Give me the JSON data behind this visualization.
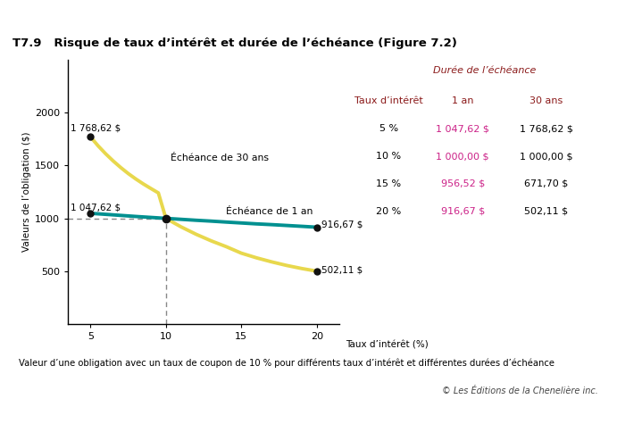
{
  "title": "T7.9   Risque de taux d’intérêt et durée de l’échéance (Figure 7.2)",
  "ylabel": "Valeurs de l’obligation ($)",
  "xlabel": "Taux d’intérêt (%)",
  "footnote": "Valeur d’une obligation avec un taux de coupon de 10 % pour différents taux d’intérêt et différentes durées d’échéance",
  "copyright": "© Les Éditions de la Chenelière inc.",
  "top_bar_color": "#D4C400",
  "purple_bar_color": "#350060",
  "background_color": "#FFFFFF",
  "curve30_x": [
    5,
    5.5,
    6,
    6.5,
    7,
    7.5,
    8,
    8.5,
    9,
    9.5,
    10,
    10.5,
    11,
    12,
    13,
    14,
    15,
    16,
    17,
    18,
    19,
    20
  ],
  "curve30_y": [
    1768.62,
    1685,
    1610,
    1542,
    1480,
    1423,
    1372,
    1325,
    1282,
    1240,
    1000.0,
    960,
    920,
    850,
    788,
    733,
    671.7,
    628,
    590,
    556,
    527,
    502.11
  ],
  "curve1_x": [
    5,
    6,
    7,
    8,
    9,
    10,
    11,
    12,
    13,
    14,
    15,
    16,
    17,
    18,
    19,
    20
  ],
  "curve1_y": [
    1047.62,
    1038.0,
    1028.0,
    1018.0,
    1009.0,
    1000.0,
    991.0,
    982.0,
    974.0,
    965.0,
    956.52,
    948.0,
    941.0,
    933.0,
    925.0,
    916.67
  ],
  "curve30_color": "#E8D84D",
  "curve1_color": "#009090",
  "dot_color": "#111111",
  "xlim": [
    3.5,
    21.5
  ],
  "ylim": [
    0,
    2500
  ],
  "yticks": [
    500,
    1000,
    1500,
    2000
  ],
  "xticks": [
    5,
    10,
    15,
    20
  ],
  "table_header": "Durée de l’échéance",
  "table_col1": "Taux d’intérêt",
  "table_col2": "1 an",
  "table_col3": "30 ans",
  "table_rows": [
    [
      "5 %",
      "1 047,62 $",
      "1 768,62 $"
    ],
    [
      "10 %",
      "1 000,00 $",
      "1 000,00 $"
    ],
    [
      "15 %",
      "956,52 $",
      "671,70 $"
    ],
    [
      "20 %",
      "916,67 $",
      "502,11 $"
    ]
  ],
  "table_header_color": "#8B1A1A",
  "table_col_header_color": "#8B1A1A",
  "table_data_1an_color": "#CC2288",
  "table_data_30ans_color": "#000000",
  "label_1768": "1 768,62 $",
  "label_1047": "1 047,62 $",
  "label_916": "916,67 $",
  "label_502": "502,11 $",
  "label_30ans": "Échéance de 30 ans",
  "label_1an": "Échéance de 1 an"
}
